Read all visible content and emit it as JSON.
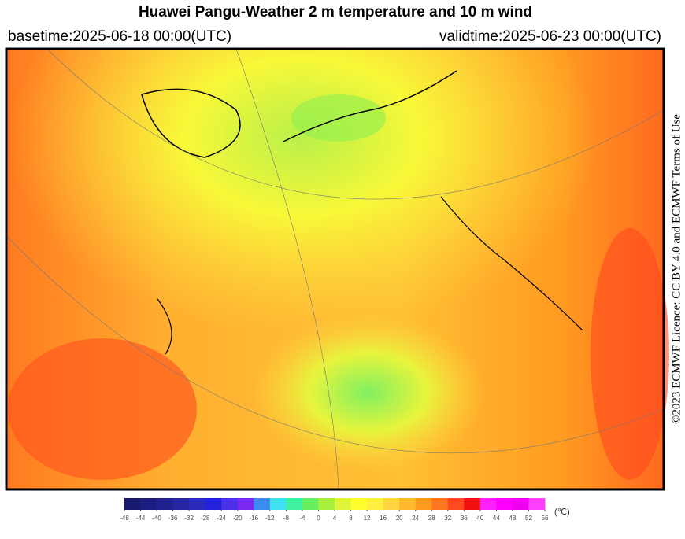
{
  "header": {
    "title": "Huawei Pangu-Weather  2 m temperature and 10 m wind",
    "basetime": "basetime:2025-06-18 00:00(UTC)",
    "validtime": "validtime:2025-06-23 00:00(UTC)"
  },
  "licence": "©2023 ECMWF Licence: CC BY 4.0 and ECMWF Terms of Use",
  "colorbar": {
    "unit": "(℃)",
    "ticks": [
      -48,
      -44,
      -40,
      -36,
      -32,
      -28,
      -24,
      -20,
      -16,
      -12,
      -8,
      -4,
      0,
      4,
      8,
      12,
      16,
      20,
      24,
      28,
      32,
      36,
      40,
      44,
      48,
      52,
      56
    ],
    "colors": [
      "#191970",
      "#1c1c82",
      "#20208f",
      "#2626a2",
      "#2a2ab8",
      "#2222dc",
      "#4a30e8",
      "#7a2af0",
      "#3a8cf0",
      "#40e0f0",
      "#40f0a0",
      "#66f060",
      "#a8f040",
      "#e0f43c",
      "#ffff30",
      "#fff040",
      "#ffd640",
      "#ffb830",
      "#ff9a20",
      "#ff7820",
      "#ff4a20",
      "#f01010",
      "#ff20ff",
      "#ff00ff",
      "#f000f0",
      "#ff40ff"
    ]
  }
}
